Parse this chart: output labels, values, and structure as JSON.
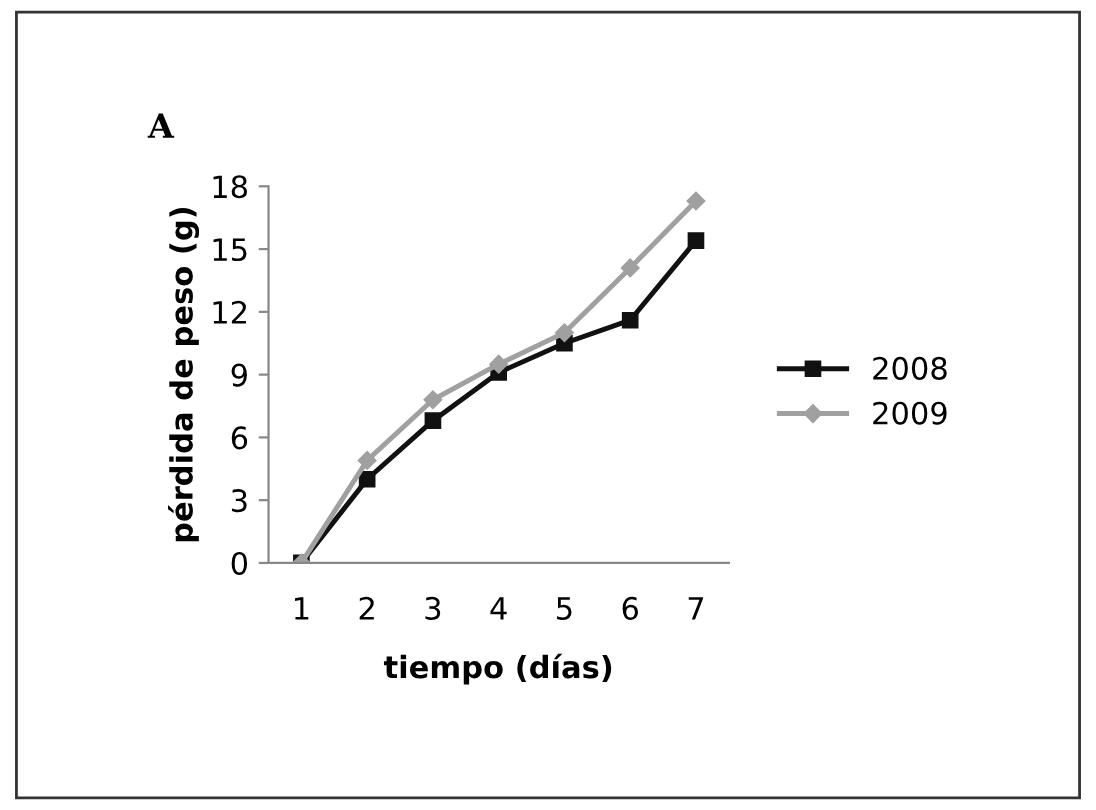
{
  "chart_data": {
    "type": "line",
    "title": "A",
    "xlabel": "tiempo (días)",
    "ylabel": "pérdida de peso (g)",
    "categories": [
      "1",
      "2",
      "3",
      "4",
      "5",
      "6",
      "7"
    ],
    "series": [
      {
        "name": "2008",
        "color": "#111111",
        "marker": "square",
        "values": [
          0,
          4.0,
          6.8,
          9.1,
          10.5,
          11.6,
          15.4
        ]
      },
      {
        "name": "2009",
        "color": "#a0a0a0",
        "marker": "diamond",
        "values": [
          0,
          4.9,
          7.8,
          9.5,
          11.0,
          14.1,
          17.3
        ]
      }
    ],
    "ylim": [
      0,
      18
    ],
    "yticks": [
      0,
      3,
      6,
      9,
      12,
      15,
      18
    ],
    "grid": false,
    "legend": "right",
    "line_style": "solid"
  }
}
